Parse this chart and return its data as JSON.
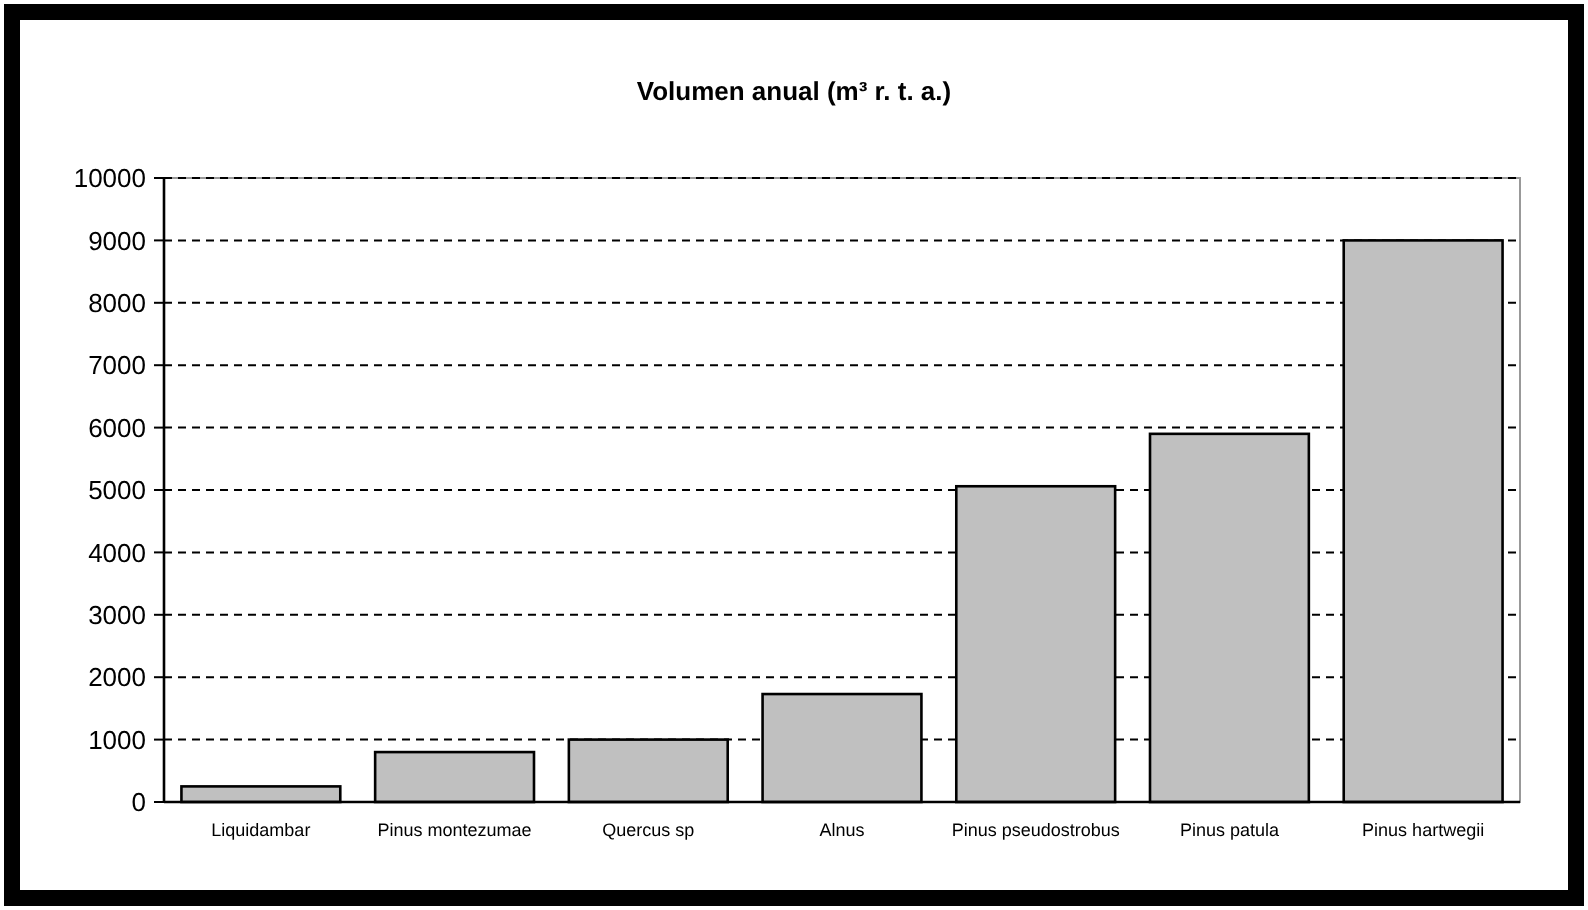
{
  "chart_data": {
    "type": "bar",
    "title": "Volumen anual (m³ r. t. a.)",
    "categories": [
      "Liquidambar",
      "Pinus montezumae",
      "Quercus sp",
      "Alnus",
      "Pinus pseudostrobus",
      "Pinus patula",
      "Pinus hartwegii"
    ],
    "values": [
      250,
      800,
      1000,
      1730,
      5060,
      5900,
      9000
    ],
    "color": "#c0c0c0",
    "ylim": [
      0,
      10000
    ],
    "yticks": [
      0,
      1000,
      2000,
      3000,
      4000,
      5000,
      6000,
      7000,
      8000,
      9000,
      10000
    ],
    "grid": "y",
    "line_style": "dashed"
  }
}
